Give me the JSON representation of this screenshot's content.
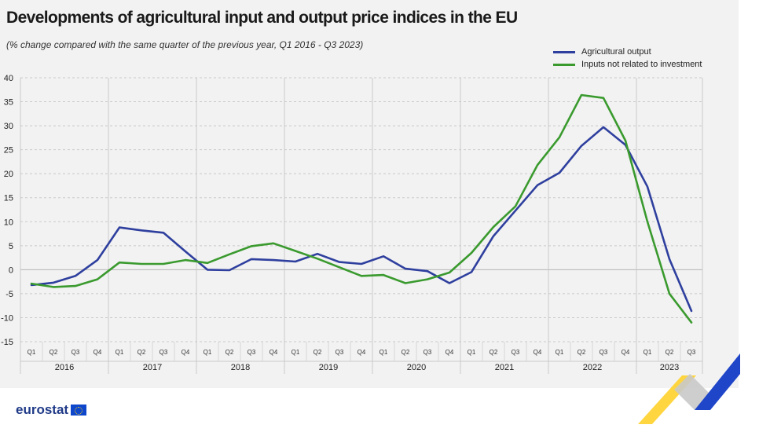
{
  "header": {
    "title": "Developments of agricultural input and output price indices in the EU",
    "subtitle": "(% change compared with the same quarter of the previous year,  Q1 2016 - Q3 2023)"
  },
  "branding": {
    "logo_text": "eurostat"
  },
  "chart_data": {
    "type": "line",
    "title": "Developments of agricultural input and output price indices in the EU",
    "subtitle": "(% change compared with the same quarter of the previous year,  Q1 2016 - Q3 2023)",
    "xlabel": "",
    "ylabel": "",
    "ylim": [
      -15,
      40
    ],
    "yticks": [
      40,
      35,
      30,
      25,
      20,
      15,
      10,
      5,
      0,
      -5,
      -10,
      -15
    ],
    "grid": true,
    "legend_position": "top-right",
    "years": [
      "2016",
      "2017",
      "2018",
      "2019",
      "2020",
      "2021",
      "2022",
      "2023"
    ],
    "quarters": [
      "Q1",
      "Q2",
      "Q3",
      "Q4"
    ],
    "x": [
      "Q1 2016",
      "Q2 2016",
      "Q3 2016",
      "Q4 2016",
      "Q1 2017",
      "Q2 2017",
      "Q3 2017",
      "Q4 2017",
      "Q1 2018",
      "Q2 2018",
      "Q3 2018",
      "Q4 2018",
      "Q1 2019",
      "Q2 2019",
      "Q3 2019",
      "Q4 2019",
      "Q1 2020",
      "Q2 2020",
      "Q3 2020",
      "Q4 2020",
      "Q1 2021",
      "Q2 2021",
      "Q3 2021",
      "Q4 2021",
      "Q1 2022",
      "Q2 2022",
      "Q3 2022",
      "Q4 2022",
      "Q1 2023",
      "Q2 2023",
      "Q3 2023"
    ],
    "series": [
      {
        "name": "Agricultural output",
        "color": "#2e3f9e",
        "values": [
          -3.2,
          -2.7,
          -1.3,
          2.0,
          8.8,
          8.2,
          7.7,
          3.8,
          0.0,
          -0.1,
          2.2,
          2.0,
          1.7,
          3.3,
          1.6,
          1.2,
          2.8,
          0.2,
          -0.3,
          -2.8,
          -0.5,
          7.0,
          12.3,
          17.6,
          20.2,
          25.8,
          29.7,
          26.0,
          17.3,
          2.2,
          -8.6
        ]
      },
      {
        "name": "Inputs not related to investment",
        "color": "#3a9a2e",
        "values": [
          -2.9,
          -3.6,
          -3.4,
          -2.0,
          1.5,
          1.2,
          1.2,
          2.0,
          1.4,
          3.2,
          4.9,
          5.5,
          3.9,
          2.3,
          0.5,
          -1.3,
          -1.1,
          -2.8,
          -2.0,
          -0.6,
          3.5,
          8.9,
          13.2,
          21.8,
          27.6,
          36.4,
          35.8,
          26.9,
          10.0,
          -5.0,
          -11.0
        ]
      }
    ]
  }
}
